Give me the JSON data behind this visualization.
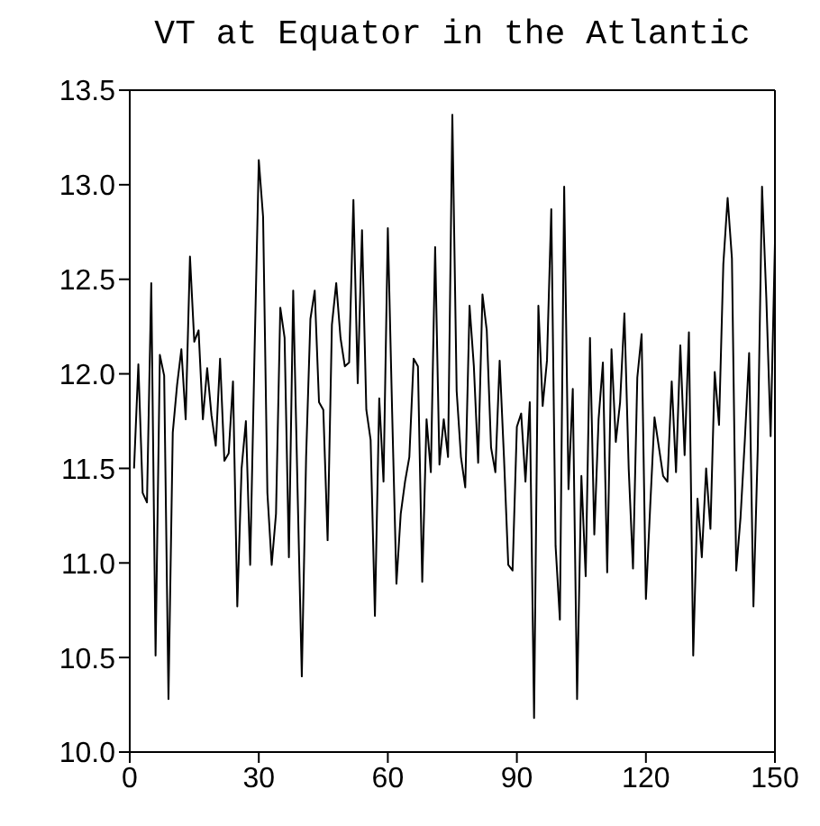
{
  "chart_data": {
    "type": "line",
    "title": "VT at Equator in the Atlantic",
    "x": [
      1,
      2,
      3,
      4,
      5,
      6,
      7,
      8,
      9,
      10,
      11,
      12,
      13,
      14,
      15,
      16,
      17,
      18,
      19,
      20,
      21,
      22,
      23,
      24,
      25,
      26,
      27,
      28,
      29,
      30,
      31,
      32,
      33,
      34,
      35,
      36,
      37,
      38,
      39,
      40,
      41,
      42,
      43,
      44,
      45,
      46,
      47,
      48,
      49,
      50,
      51,
      52,
      53,
      54,
      55,
      56,
      57,
      58,
      59,
      60,
      61,
      62,
      63,
      64,
      65,
      66,
      67,
      68,
      69,
      70,
      71,
      72,
      73,
      74,
      75,
      76,
      77,
      78,
      79,
      80,
      81,
      82,
      83,
      84,
      85,
      86,
      87,
      88,
      89,
      90,
      91,
      92,
      93,
      94,
      95,
      96,
      97,
      98,
      99,
      100,
      101,
      102,
      103,
      104,
      105,
      106,
      107,
      108,
      109,
      110,
      111,
      112,
      113,
      114,
      115,
      116,
      117,
      118,
      119,
      120,
      121,
      122,
      124,
      125,
      126,
      127,
      128,
      129,
      130,
      131,
      132,
      133,
      134,
      135,
      136,
      137,
      138,
      139,
      140,
      141,
      142,
      143,
      144,
      145,
      146,
      147,
      148,
      149,
      150
    ],
    "series": [
      {
        "color": "#000000",
        "values": [
          11.5,
          12.05,
          11.37,
          11.32,
          12.48,
          10.51,
          12.1,
          11.99,
          10.28,
          11.69,
          11.94,
          12.13,
          11.76,
          12.62,
          12.17,
          12.23,
          11.76,
          12.03,
          11.78,
          11.62,
          12.08,
          11.54,
          11.58,
          11.96,
          10.77,
          11.5,
          11.75,
          10.99,
          12.1,
          13.13,
          12.83,
          11.37,
          10.99,
          11.26,
          12.35,
          12.19,
          11.03,
          12.44,
          11.4,
          10.4,
          11.56,
          12.29,
          12.44,
          11.85,
          11.81,
          11.12,
          12.26,
          12.48,
          12.19,
          12.04,
          12.06,
          12.92,
          11.95,
          12.76,
          11.81,
          11.65,
          10.72,
          11.87,
          11.43,
          12.77,
          11.8,
          10.89,
          11.26,
          11.43,
          11.56,
          12.08,
          12.04,
          10.9,
          11.76,
          11.48,
          12.67,
          11.52,
          11.76,
          11.56,
          13.37,
          11.91,
          11.56,
          11.4,
          12.36,
          12.04,
          11.53,
          12.42,
          12.23,
          11.61,
          11.48,
          12.07,
          11.56,
          10.99,
          10.96,
          11.72,
          11.79,
          11.43,
          11.85,
          10.18,
          12.36,
          11.83,
          12.07,
          12.87,
          11.09,
          10.7,
          12.99,
          11.39,
          11.92,
          10.28,
          11.46,
          10.93,
          12.19,
          11.15,
          11.76,
          12.06,
          10.95,
          12.13,
          11.64,
          11.85,
          12.32,
          11.5,
          10.97,
          11.98,
          12.21,
          10.81,
          11.3,
          11.77,
          11.46,
          11.43,
          11.96,
          11.48,
          12.15,
          11.57,
          12.22,
          10.51,
          11.34,
          11.03,
          11.5,
          11.18,
          12.01,
          11.73,
          12.58,
          12.93,
          12.61,
          10.96,
          11.24,
          11.65,
          12.11,
          10.77,
          11.6,
          12.99,
          12.4,
          11.67,
          12.69
        ]
      }
    ],
    "xlim": [
      0,
      150
    ],
    "xticks": [
      0,
      30,
      60,
      90,
      120,
      150
    ],
    "ylim": [
      10,
      13.5
    ],
    "yticks": [
      {
        "value": 10,
        "label": "10.0"
      },
      {
        "value": 10.5,
        "label": "10.5"
      },
      {
        "value": 11,
        "label": "11.0"
      },
      {
        "value": 11.5,
        "label": "11.5"
      },
      {
        "value": 12,
        "label": "12.0"
      },
      {
        "value": 12.5,
        "label": "12.5"
      },
      {
        "value": 13,
        "label": "13.0"
      },
      {
        "value": 13.5,
        "label": "13.5"
      }
    ],
    "grid": false,
    "legend": false,
    "marker": "none",
    "line_style": "solid"
  }
}
